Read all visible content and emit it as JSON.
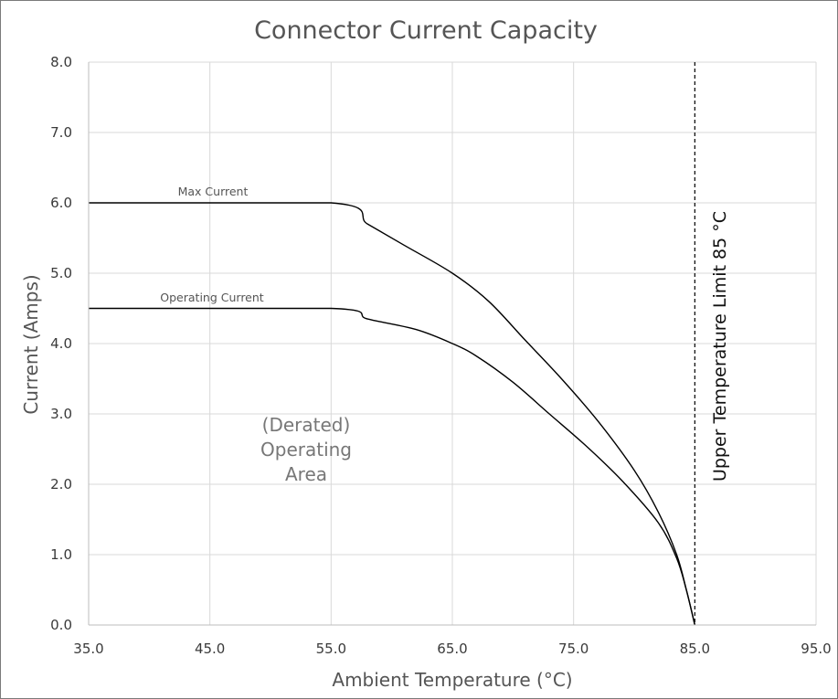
{
  "chart_data": {
    "type": "line",
    "title": "Connector Current Capacity",
    "xlabel": "Ambient Temperature (°C)",
    "ylabel": "Current (Amps)",
    "xlim": [
      35,
      95
    ],
    "ylim": [
      0,
      8
    ],
    "x_ticks": [
      "35.0",
      "45.0",
      "55.0",
      "65.0",
      "75.0",
      "85.0",
      "95.0"
    ],
    "y_ticks": [
      "0.0",
      "1.0",
      "2.0",
      "3.0",
      "4.0",
      "5.0",
      "6.0",
      "7.0",
      "8.0"
    ],
    "grid": true,
    "series": [
      {
        "name": "Max Current",
        "color": "#000000",
        "x": [
          35,
          55,
          58,
          61,
          65,
          68,
          71,
          74,
          77,
          80,
          82,
          83.5,
          84.3,
          85
        ],
        "y": [
          6.0,
          6.0,
          5.7,
          5.4,
          5.0,
          4.6,
          4.05,
          3.5,
          2.9,
          2.2,
          1.6,
          1.0,
          0.5,
          0.0
        ]
      },
      {
        "name": "Operating Current",
        "color": "#000000",
        "x": [
          35,
          55,
          58,
          62,
          65,
          67,
          70,
          73,
          76,
          79,
          82,
          83.5,
          84.3,
          85
        ],
        "y": [
          4.5,
          4.5,
          4.35,
          4.2,
          4.0,
          3.82,
          3.45,
          3.0,
          2.55,
          2.05,
          1.45,
          0.95,
          0.5,
          0.0
        ]
      }
    ],
    "annotations": {
      "area_label": [
        "(Derated)",
        "Operating",
        "Area"
      ],
      "limit_label": "Upper Temperature Limit 85 °C",
      "limit_x": 85
    }
  }
}
